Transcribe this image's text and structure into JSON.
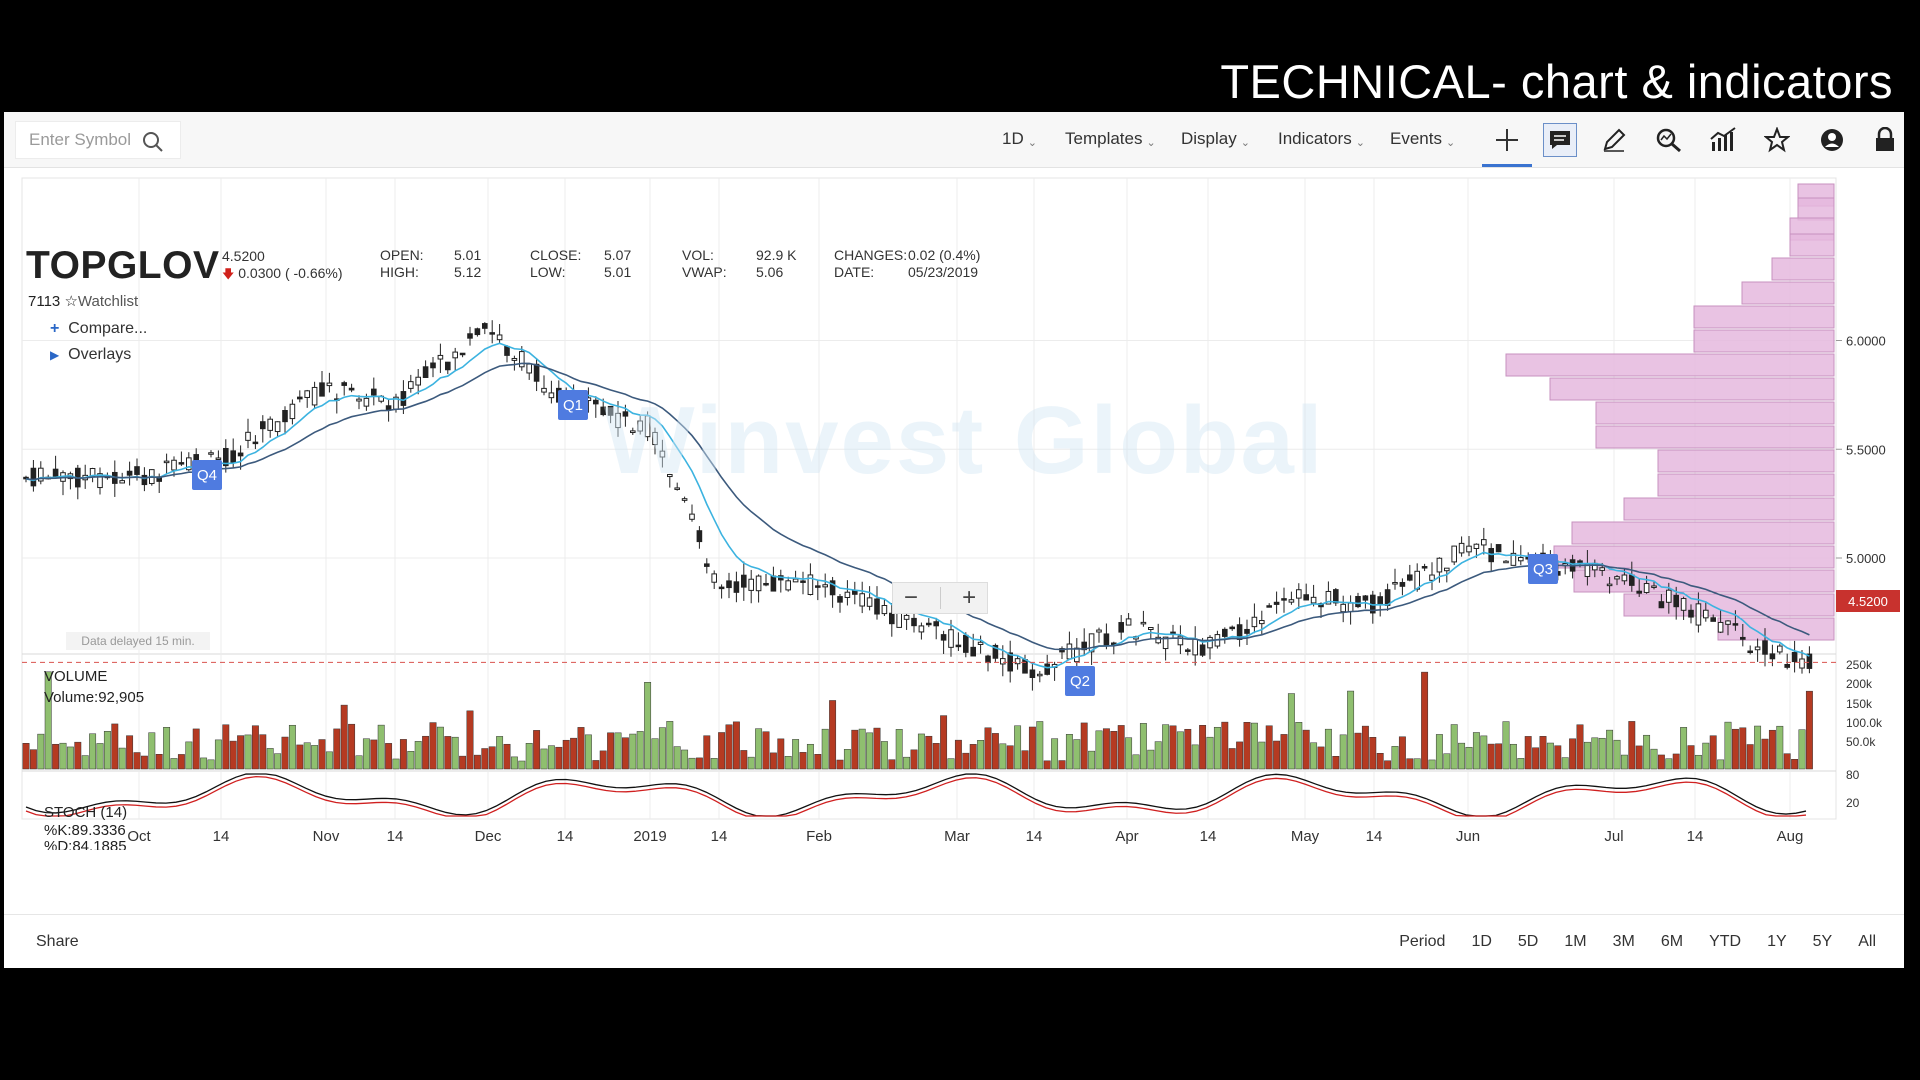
{
  "slide_title": "TECHNICAL- chart & indicators",
  "toolbar": {
    "symbol_placeholder": "Enter Symbol",
    "menus": [
      "1D",
      "Templates",
      "Display",
      "Indicators",
      "Events"
    ],
    "icons": [
      "crosshair-icon",
      "comment-icon",
      "pencil-icon",
      "zoom-search-icon",
      "chart-bars-icon",
      "star-icon",
      "user-icon",
      "lock-icon"
    ]
  },
  "quote": {
    "ticker": "TOPGLOV",
    "price": "4.5200",
    "change": "0.0300 ( -0.66%)",
    "code": "7113",
    "watchlist": "Watchlist",
    "open_label": "OPEN:",
    "open": "5.01",
    "high_label": "HIGH:",
    "high": "5.12",
    "close_label": "CLOSE:",
    "close": "5.07",
    "low_label": "LOW:",
    "low": "5.01",
    "vol_label": "VOL:",
    "vol": "92.9 K",
    "vwap_label": "VWAP:",
    "vwap": "5.06",
    "changes_label": "CHANGES:",
    "changes": "0.02 (0.4%)",
    "date_label": "DATE:",
    "date": "05/23/2019"
  },
  "panel": {
    "compare": "Compare...",
    "overlays": "Overlays",
    "delayed": "Data delayed 15 min.",
    "watermark": "Winvest Global",
    "price_tag": "4.5200",
    "quarter_badges": [
      "Q4",
      "Q1",
      "Q2",
      "Q3"
    ]
  },
  "volume_panel": {
    "label": "VOLUME",
    "value": "Volume:92,905"
  },
  "stoch_panel": {
    "label": "STOCH (14)",
    "k": "%K:89.3336",
    "d": "%D:84.1885"
  },
  "chart_data": {
    "type": "line",
    "price_axis_ticks": [
      "6.0000",
      "5.5000",
      "5.0000"
    ],
    "volume_axis_ticks": [
      "250k",
      "200k",
      "150k",
      "100.0k",
      "50.0k"
    ],
    "stoch_axis_ticks": [
      "80",
      "20"
    ],
    "x_tick_labels": [
      "Oct",
      "14",
      "Nov",
      "14",
      "Dec",
      "14",
      "2019",
      "14",
      "Feb",
      "Mar",
      "14",
      "Apr",
      "14",
      "May",
      "14",
      "Jun",
      "Jul",
      "14",
      "Aug"
    ],
    "last_price": 4.52,
    "price_series_approx": [
      [
        "Oct",
        5.37
      ],
      [
        "14",
        5.45
      ],
      [
        "Nov",
        5.78
      ],
      [
        "14",
        5.72
      ],
      [
        "Dec",
        6.05
      ],
      [
        "14",
        5.72
      ],
      [
        "2019",
        5.6
      ],
      [
        "14",
        4.88
      ],
      [
        "Feb",
        4.88
      ],
      [
        "Mar",
        4.62
      ],
      [
        "14",
        4.48
      ],
      [
        "Apr",
        4.68
      ],
      [
        "14",
        4.58
      ],
      [
        "May",
        4.83
      ],
      [
        "14",
        4.78
      ],
      [
        "Jun",
        5.05
      ],
      [
        "Jul",
        4.92
      ],
      [
        "14",
        4.75
      ],
      [
        "Aug",
        4.52
      ]
    ]
  },
  "footer": {
    "share": "Share",
    "periods": [
      "Period",
      "1D",
      "5D",
      "1M",
      "3M",
      "6M",
      "YTD",
      "1Y",
      "5Y",
      "All"
    ]
  },
  "colors": {
    "up": "#8fbf6f",
    "down": "#b53a22",
    "ema_fast": "#3cb3e0",
    "ema_slow": "#3c5a7d",
    "volume_profile": "#e5b9de"
  }
}
